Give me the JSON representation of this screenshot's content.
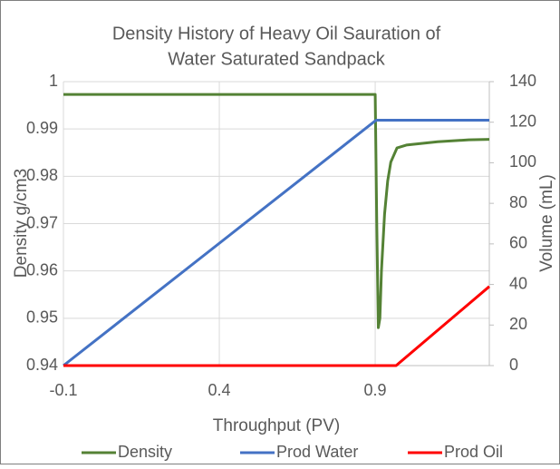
{
  "chart_data": {
    "type": "line",
    "title": [
      "Density History of Heavy Oil Sauration of",
      "Water Saturated Sandpack"
    ],
    "x_label": "Throughput (PV)",
    "y_label": "Density g/cm3",
    "y2_label": "Volume (mL)",
    "xlim": [
      -0.1,
      1.266
    ],
    "xticks": [
      -0.1,
      0.4,
      0.9
    ],
    "ylim": [
      0.94,
      1
    ],
    "yticks": [
      0.94,
      0.95,
      0.96,
      0.97,
      0.98,
      0.99,
      1
    ],
    "y2lim": [
      0,
      140
    ],
    "y2ticks": [
      0,
      20,
      40,
      60,
      80,
      100,
      120,
      140
    ],
    "grid": true,
    "legend": "bottom",
    "series": [
      {
        "name": "Density",
        "color": "#548235",
        "x": [
          -0.1,
          0.9,
          0.905,
          0.91,
          0.915,
          0.92,
          0.93,
          0.94,
          0.95,
          0.97,
          1.0,
          1.1,
          1.2,
          1.266
        ],
        "values": [
          0.9973,
          0.9973,
          0.97,
          0.948,
          0.95,
          0.96,
          0.972,
          0.979,
          0.983,
          0.986,
          0.9866,
          0.9873,
          0.9877,
          0.9878
        ]
      },
      {
        "name": "Prod Water",
        "color": "#4472c4",
        "axis": "y2",
        "x": [
          -0.1,
          0.903,
          1.266
        ],
        "values": [
          0,
          121,
          121
        ]
      },
      {
        "name": "Prod Oil",
        "color": "#ff0000",
        "axis": "y2",
        "x": [
          -0.1,
          0.967,
          1.266
        ],
        "values": [
          0,
          0,
          39
        ]
      }
    ]
  }
}
